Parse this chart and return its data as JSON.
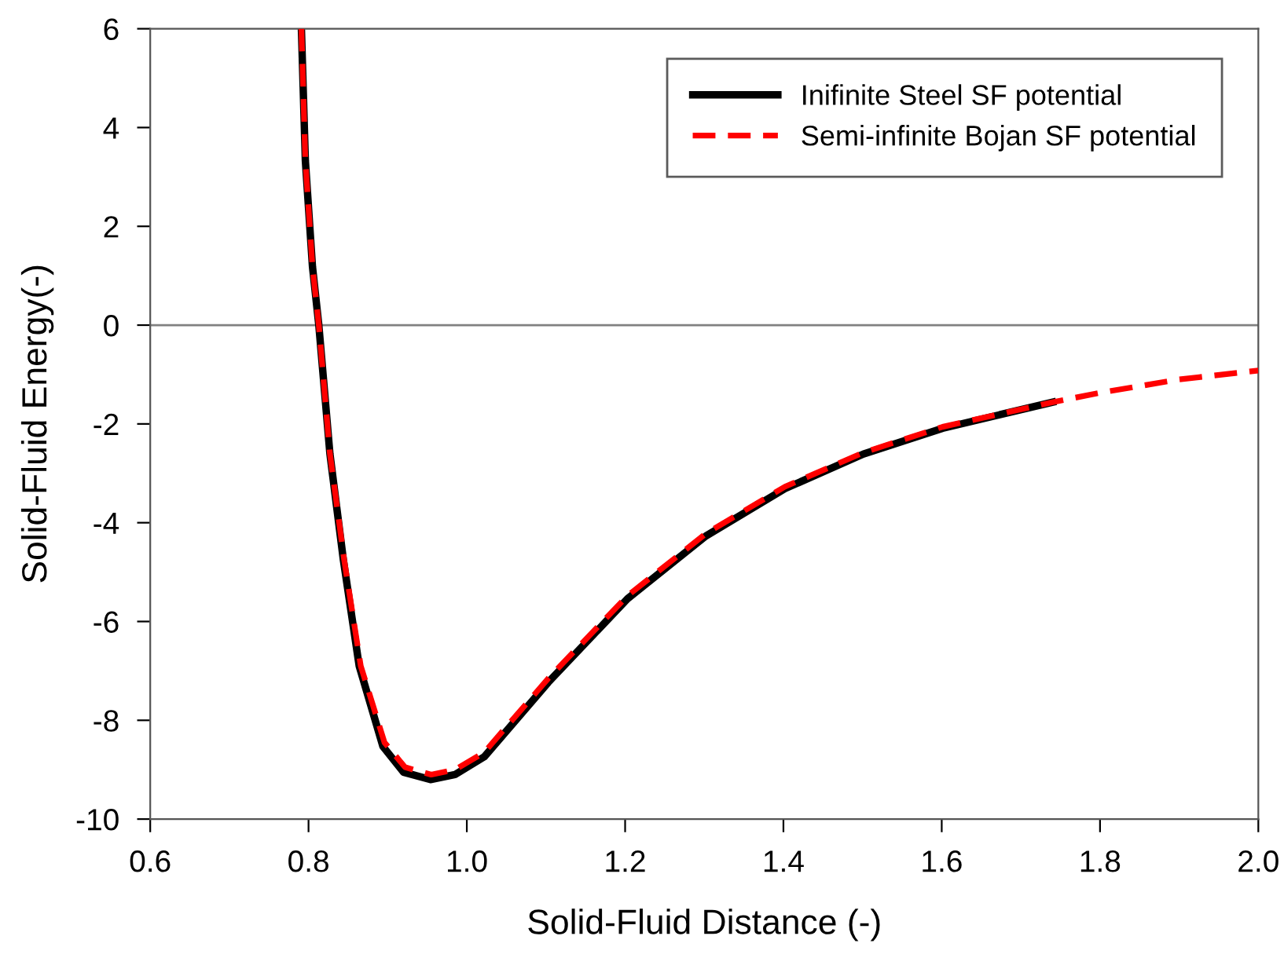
{
  "chart_data": {
    "type": "line",
    "xlabel": "Solid-Fluid Distance (-)",
    "ylabel": "Solid-Fluid Energy(-)",
    "xlim": [
      0.6,
      2.0
    ],
    "ylim": [
      -10,
      6
    ],
    "xticks": [
      {
        "value": 0.6,
        "label": "0.6"
      },
      {
        "value": 0.8,
        "label": "0.8"
      },
      {
        "value": 1.0,
        "label": "1.0"
      },
      {
        "value": 1.2,
        "label": "1.2"
      },
      {
        "value": 1.4,
        "label": "1.4"
      },
      {
        "value": 1.6,
        "label": "1.6"
      },
      {
        "value": 1.8,
        "label": "1.8"
      },
      {
        "value": 2.0,
        "label": "2.0"
      }
    ],
    "yticks": [
      -10,
      -8,
      -6,
      -4,
      -2,
      0,
      2,
      4,
      6
    ],
    "grid": false,
    "legend": "top right",
    "marker": "none",
    "ref_lines": [
      {
        "axis": "y",
        "value": 0,
        "color": "#808080"
      }
    ],
    "series": [
      {
        "name": "Inifinite Steel SF potential",
        "color": "#000000",
        "line_style": "solid",
        "x": [
          0.791,
          0.796,
          0.805,
          0.813,
          0.827,
          0.844,
          0.864,
          0.894,
          0.92,
          0.954,
          0.985,
          1.022,
          1.103,
          1.203,
          1.302,
          1.402,
          1.501,
          1.601,
          1.74
        ],
        "values": [
          6,
          3.33,
          1.18,
          0,
          -2.6,
          -4.75,
          -6.9,
          -8.53,
          -9.05,
          -9.2,
          -9.1,
          -8.74,
          -7.23,
          -5.54,
          -4.27,
          -3.31,
          -2.61,
          -2.09,
          -1.56
        ]
      },
      {
        "name": "Semi-infinite Bojan SF potential",
        "color": "#ff0000",
        "line_style": "dashed",
        "x": [
          0.791,
          0.796,
          0.805,
          0.813,
          0.827,
          0.845,
          0.866,
          0.896,
          0.922,
          0.955,
          0.985,
          1.022,
          1.103,
          1.203,
          1.302,
          1.402,
          1.501,
          1.601,
          1.74,
          1.8,
          1.9,
          2.0
        ],
        "values": [
          6,
          3.33,
          1.18,
          0,
          -2.6,
          -4.75,
          -6.9,
          -8.45,
          -8.95,
          -9.1,
          -9.0,
          -8.65,
          -7.15,
          -5.48,
          -4.22,
          -3.27,
          -2.58,
          -2.06,
          -1.56,
          -1.37,
          -1.1,
          -0.92
        ]
      }
    ]
  }
}
